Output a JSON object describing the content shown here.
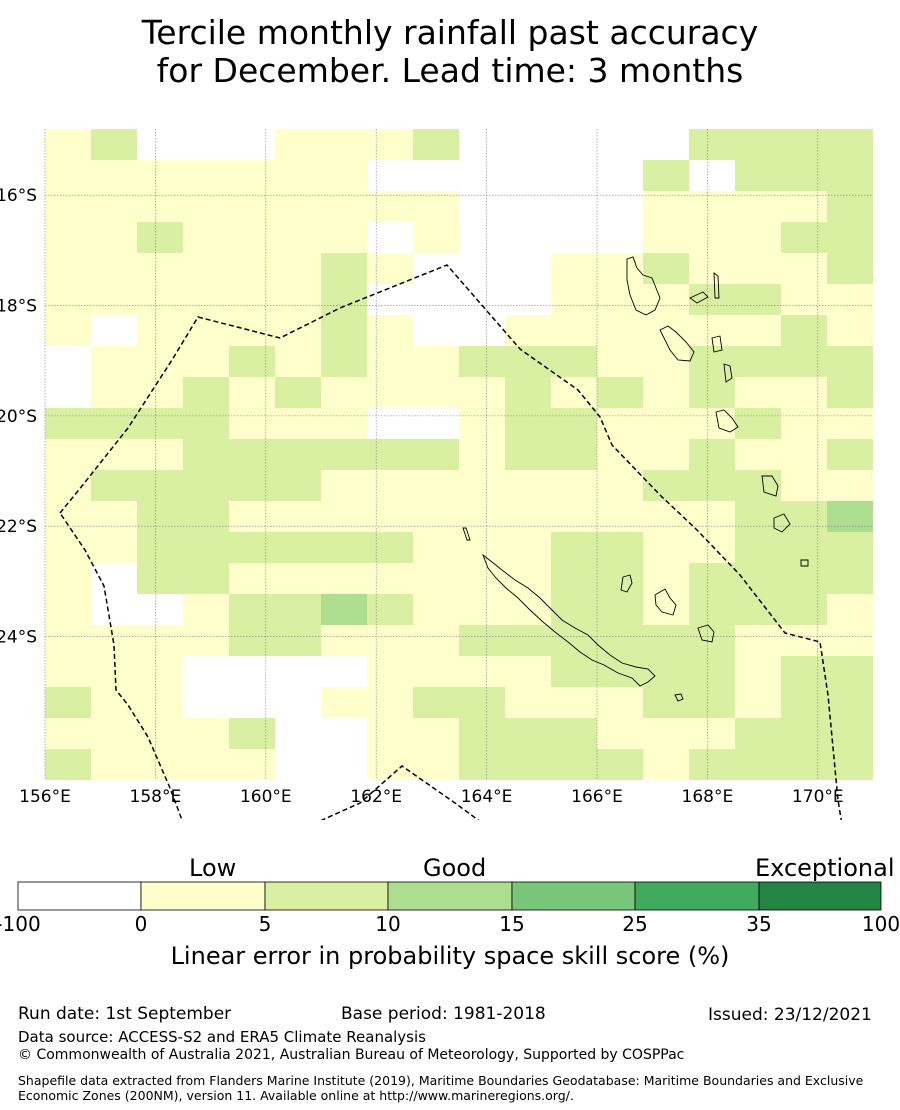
{
  "title_line1": "Tercile monthly rainfall past accuracy",
  "title_line2": "for December. Lead time: 3 months",
  "map": {
    "lon_ticks": [
      "156°E",
      "158°E",
      "160°E",
      "162°E",
      "164°E",
      "166°E",
      "168°E",
      "170°E"
    ],
    "lat_ticks": [
      "16°S",
      "18°S",
      "20°S",
      "22°S",
      "24°S"
    ],
    "lon_range": [
      156,
      171
    ],
    "lat_range": [
      -26.6,
      -14.8
    ]
  },
  "colorbar": {
    "categories": [
      "Low",
      "Good",
      "Exceptional"
    ],
    "ticks": [
      "-100",
      "0",
      "5",
      "10",
      "15",
      "25",
      "35",
      "100"
    ],
    "colors": [
      "#ffffff",
      "#ffffcc",
      "#d9f0a3",
      "#addd8e",
      "#78c679",
      "#41ab5d",
      "#238443"
    ],
    "label": "Linear error in probability space skill score (%)"
  },
  "footer": {
    "run_date": "Run date: 1st September",
    "base_period": "Base period: 1981-2018",
    "issued": "Issued: 23/12/2021",
    "data_source": "Data source: ACCESS-S2 and ERA5 Climate Reanalysis",
    "copyright": "© Commonwealth of Australia 2021, Australian Bureau of Meteorology, Supported by COSPPac",
    "shapefile": "Shapefile data extracted from Flanders Marine Institute (2019), Maritime Boundaries Geodatabase: Maritime Boundaries and Exclusive Economic Zones (200NM), version 11. Available online at http://www.marineregions.org/."
  }
}
